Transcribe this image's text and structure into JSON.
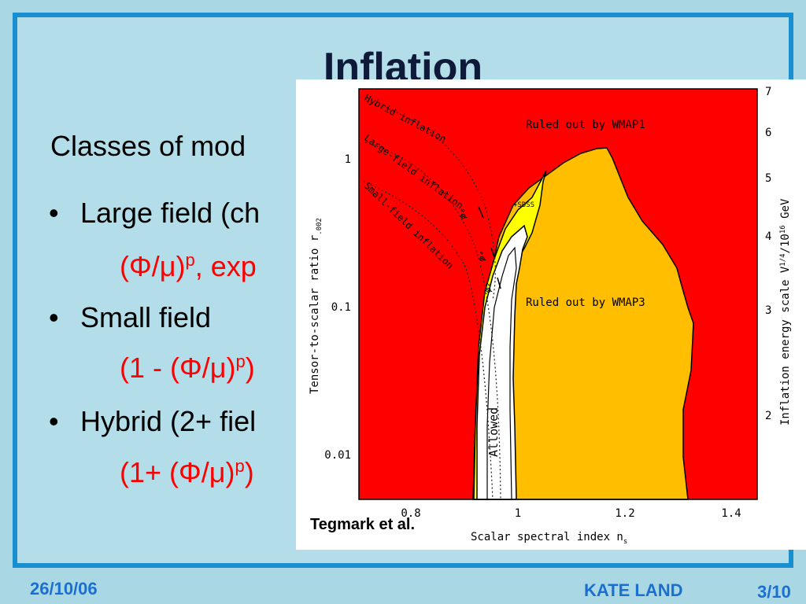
{
  "slide": {
    "title": "Inflation",
    "intro": "Classes of mod",
    "bullets": [
      {
        "label": "Large field (ch",
        "formula_a": "(Φ/μ)",
        "formula_sup": "p",
        "formula_b": ",  exp"
      },
      {
        "label": "Small field",
        "formula_a": "(1 - (Φ/μ)",
        "formula_sup": "p",
        "formula_b": ")"
      },
      {
        "label": "Hybrid (2+ fiel",
        "formula_a": "(1+ (Φ/μ)",
        "formula_sup": "p",
        "formula_b": ")"
      }
    ],
    "bullet_glyph": "•"
  },
  "figure": {
    "credit": "Tegmark et al.",
    "xlabel": "Scalar spectral index n",
    "xlabel_sub": "s",
    "ylabel": "Tensor-to-scalar ratio r",
    "ylabel_sub": ".002",
    "y2label": "Inflation energy scale V",
    "y2label_sup": "1/4",
    "y2label_tail": "/10",
    "y2label_sup2": "16",
    "y2label_unit": " GeV",
    "x_ticks": [
      "0.8",
      "1",
      "1.2",
      "1.4"
    ],
    "y_ticks": [
      "1",
      "0.1",
      "0.01"
    ],
    "y2_ticks": [
      "7",
      "6",
      "5",
      "4",
      "3",
      "2"
    ],
    "region_labels": {
      "wmap1": "Ruled out by WMAP1",
      "wmap3": "Ruled out by WMAP3",
      "allowed": "Allowed",
      "sdss": "+SDSS"
    },
    "curve_labels": {
      "hybrid": "Hybrid inflation",
      "large": "Large-field inflation",
      "small": "Small-field inflation"
    },
    "potential_labels": {
      "phi6": "φ⁶",
      "phi4": "φ⁴",
      "phi2": "φ²"
    },
    "colors": {
      "ruled_wmap1": "#ff0000",
      "ruled_wmap3": "#ffbf00",
      "sdss": "#ffff00",
      "allowed": "#ffffff"
    }
  },
  "footer": {
    "date": "26/10/06",
    "author": "KATE LAND",
    "page": "3/10"
  }
}
